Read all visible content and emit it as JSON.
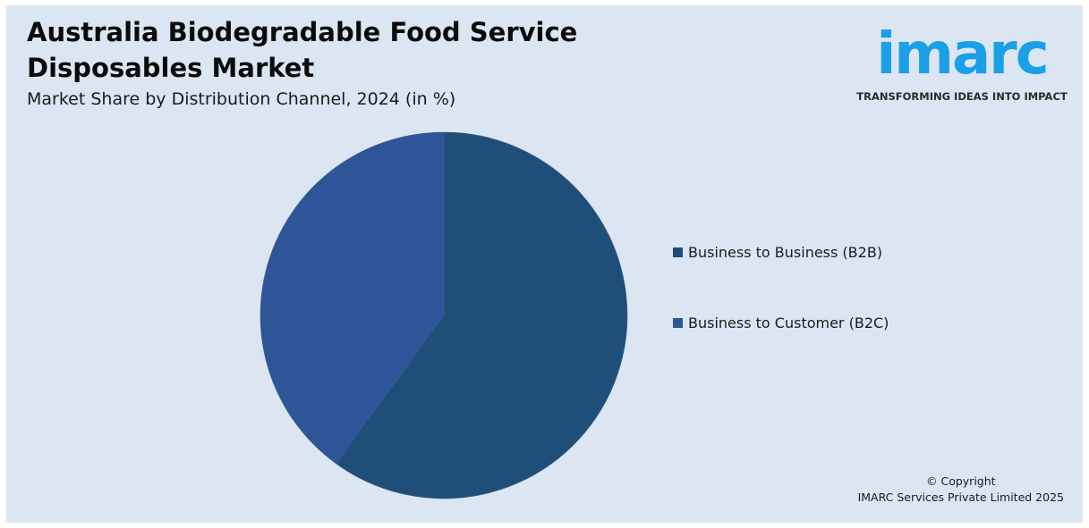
{
  "header": {
    "title": "Australia Biodegradable Food Service Disposables Market",
    "subtitle": "Market Share by Distribution Channel, 2024 (in %)"
  },
  "logo": {
    "word": "imarc",
    "tagline": "TRANSFORMING IDEAS INTO IMPACT",
    "color": "#1a9fe8"
  },
  "chart_data": {
    "type": "pie",
    "title": "",
    "categories": [
      "Business to Business (B2B)",
      "Business to Customer (B2C)"
    ],
    "values": [
      60,
      40
    ],
    "colors": [
      "#1f4e79",
      "#2e5597"
    ],
    "start_angle_deg": 0,
    "direction": "clockwise",
    "legend_position": "right"
  },
  "footer": {
    "copyright_line1": "© Copyright",
    "copyright_line2": "IMARC Services Private Limited 2025"
  }
}
